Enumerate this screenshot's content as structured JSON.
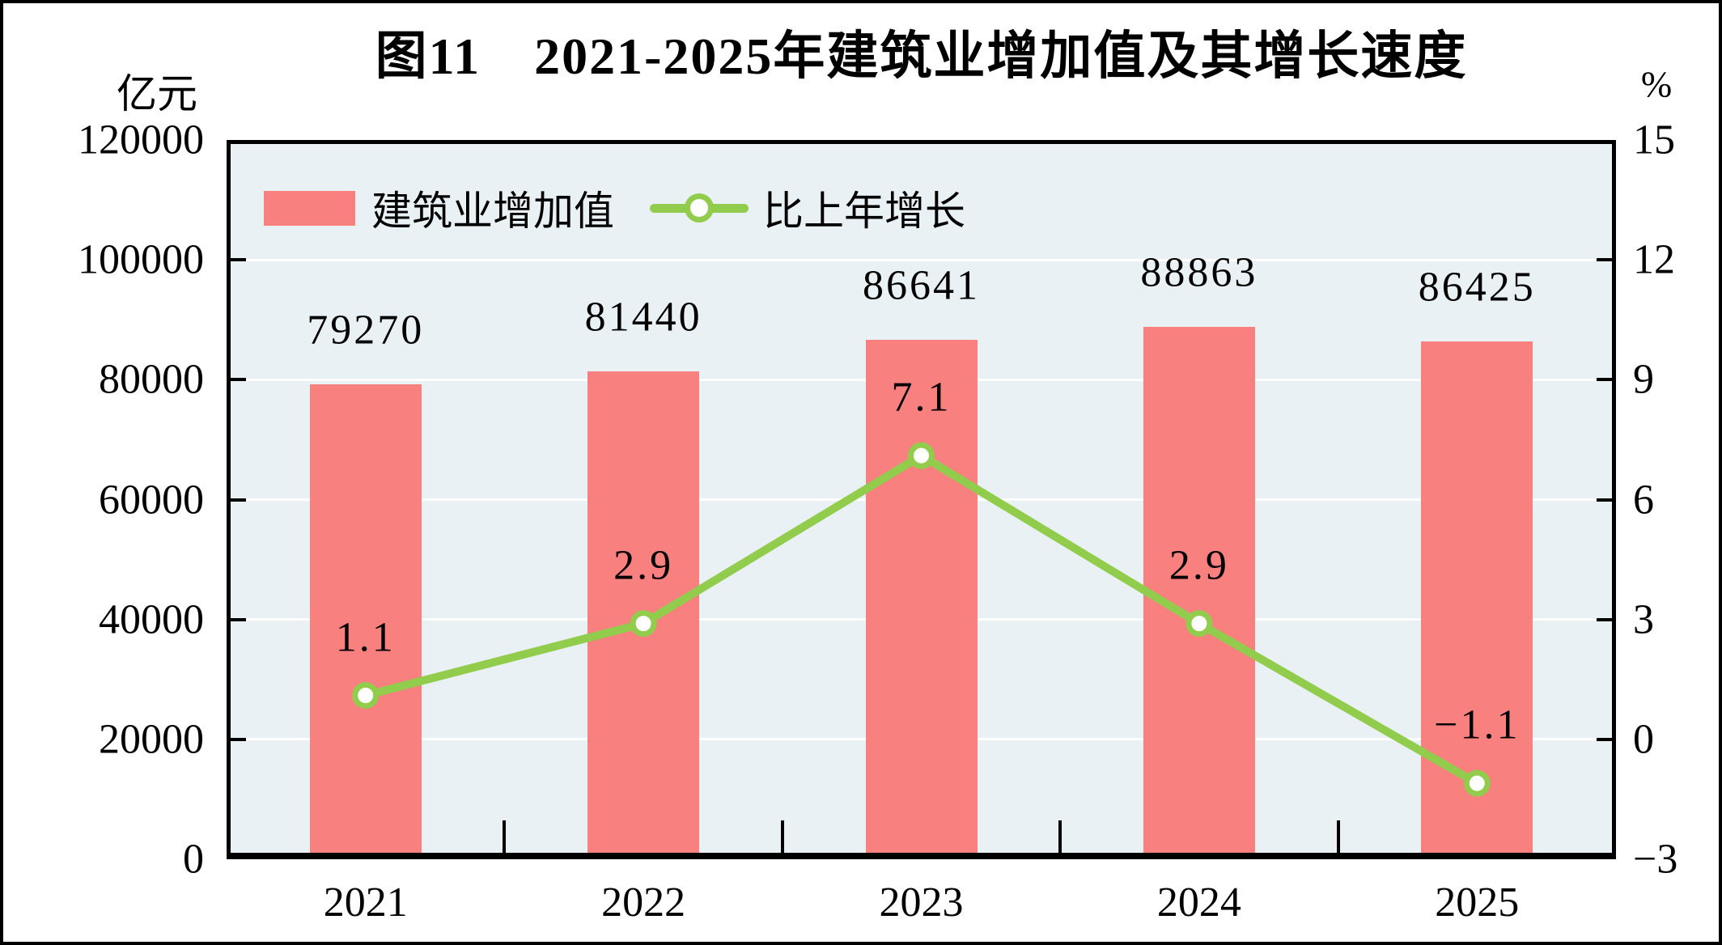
{
  "chart_data": {
    "type": "bar+line",
    "title": "图11　2021-2025年建筑业增加值及其增长速度",
    "categories": [
      "2021",
      "2022",
      "2023",
      "2024",
      "2025"
    ],
    "series": [
      {
        "name": "建筑业增加值",
        "type": "bar",
        "axis": "left",
        "unit": "亿元",
        "color": "#F8807E",
        "values": [
          79270,
          81440,
          86641,
          88863,
          86425
        ],
        "labels": [
          "79270",
          "81440",
          "86641",
          "88863",
          "86425"
        ]
      },
      {
        "name": "比上年增长",
        "type": "line",
        "axis": "right",
        "unit": "%",
        "color": "#92CC4D",
        "marker": "circle-white-fill",
        "values": [
          1.1,
          2.9,
          7.1,
          2.9,
          -1.1
        ],
        "labels": [
          "1.1",
          "2.9",
          "7.1",
          "2.9",
          "−1.1"
        ]
      }
    ],
    "left_axis": {
      "label": "亿元",
      "min": 0,
      "max": 120000,
      "step": 20000,
      "tick_values": [
        0,
        20000,
        40000,
        60000,
        80000,
        100000,
        120000
      ],
      "ticks": [
        "0",
        "20000",
        "40000",
        "60000",
        "80000",
        "100000",
        "120000"
      ]
    },
    "right_axis": {
      "label": "%",
      "min": -3,
      "max": 15,
      "step": 3,
      "tick_values": [
        -3,
        0,
        3,
        6,
        9,
        12,
        15
      ],
      "ticks": [
        "−3",
        "0",
        "3",
        "6",
        "9",
        "12",
        "15"
      ]
    },
    "legend": [
      {
        "label": "建筑业增加值",
        "swatch": "bar"
      },
      {
        "label": "比上年增长",
        "swatch": "line"
      }
    ],
    "layout_hints": {
      "legend_position": "top-left-inside",
      "grid": "horizontal-white",
      "plot_bg": "#E9F1F4",
      "grid_color": "#FFFFFF",
      "frame_color": "#000000"
    }
  }
}
